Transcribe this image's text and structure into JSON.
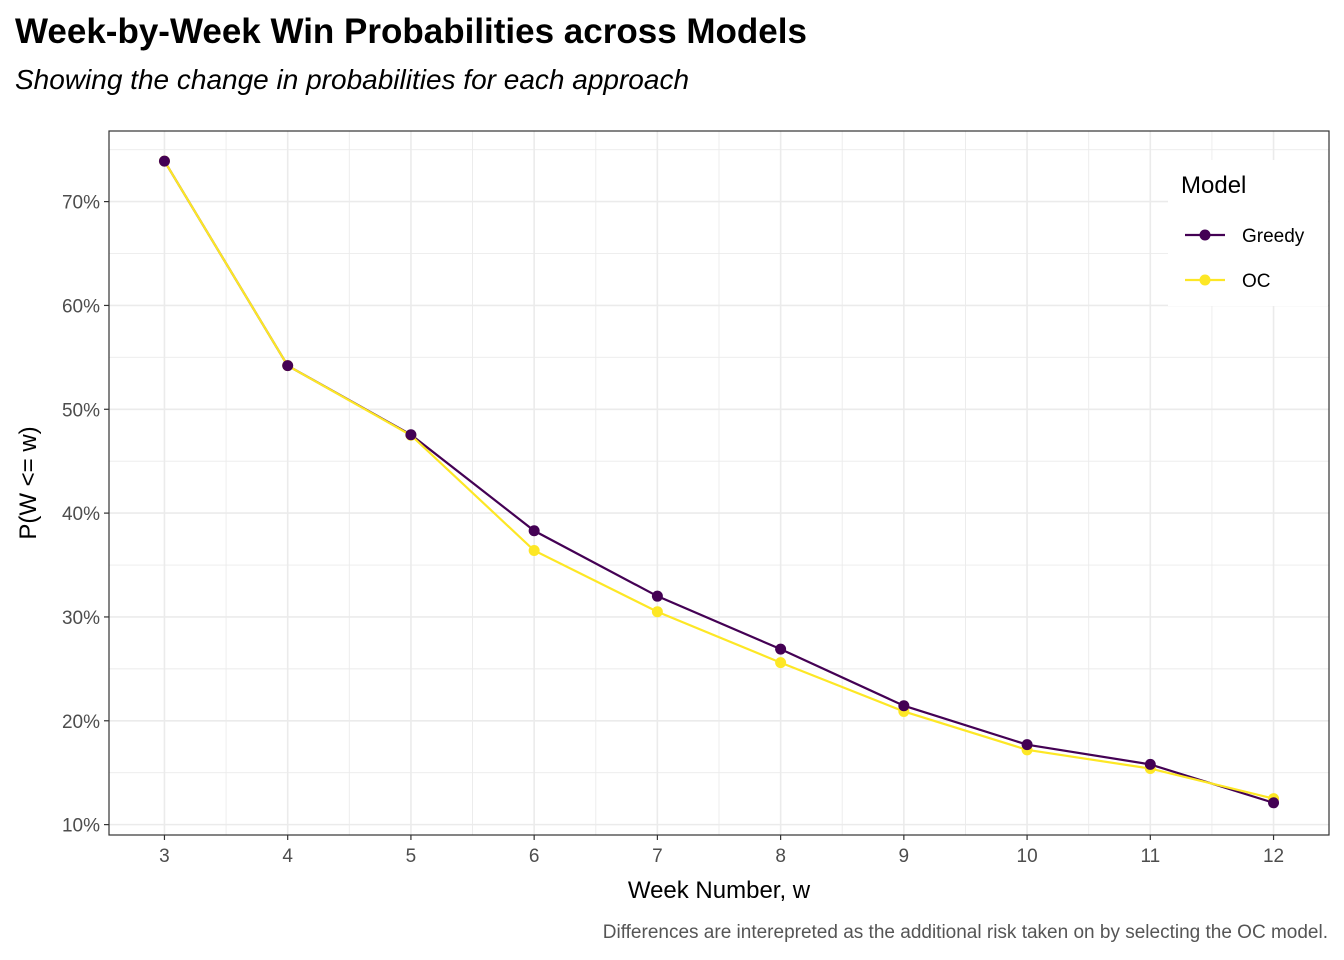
{
  "chart_data": {
    "type": "line",
    "title": "Week-by-Week Win Probabilities across Models",
    "subtitle": "Showing the change in probabilities for each approach",
    "caption": "Differences are interepreted as the additional risk taken on by selecting the OC model.",
    "xlabel": "Week Number, w",
    "ylabel": "P(W <= w)",
    "x": [
      3,
      4,
      5,
      6,
      7,
      8,
      9,
      10,
      11,
      12
    ],
    "xticks": [
      "3",
      "4",
      "5",
      "6",
      "7",
      "8",
      "9",
      "10",
      "11",
      "12"
    ],
    "yticks": [
      10,
      20,
      30,
      40,
      50,
      60,
      70
    ],
    "ytick_labels": [
      "10%",
      "20%",
      "30%",
      "40%",
      "50%",
      "60%",
      "70%"
    ],
    "xlim": [
      2.55,
      12.45
    ],
    "ylim": [
      9.0,
      76.8
    ],
    "grid": true,
    "legend": {
      "title": "Model",
      "position": "top-right"
    },
    "series": [
      {
        "name": "Greedy",
        "color": "#440154",
        "values": [
          73.9,
          54.2,
          47.55,
          38.3,
          32.0,
          26.9,
          21.45,
          17.7,
          15.8,
          12.1
        ]
      },
      {
        "name": "OC",
        "color": "#FDE725",
        "values": [
          73.9,
          54.2,
          47.5,
          36.4,
          30.5,
          25.6,
          20.9,
          17.2,
          15.4,
          12.5
        ]
      }
    ]
  }
}
